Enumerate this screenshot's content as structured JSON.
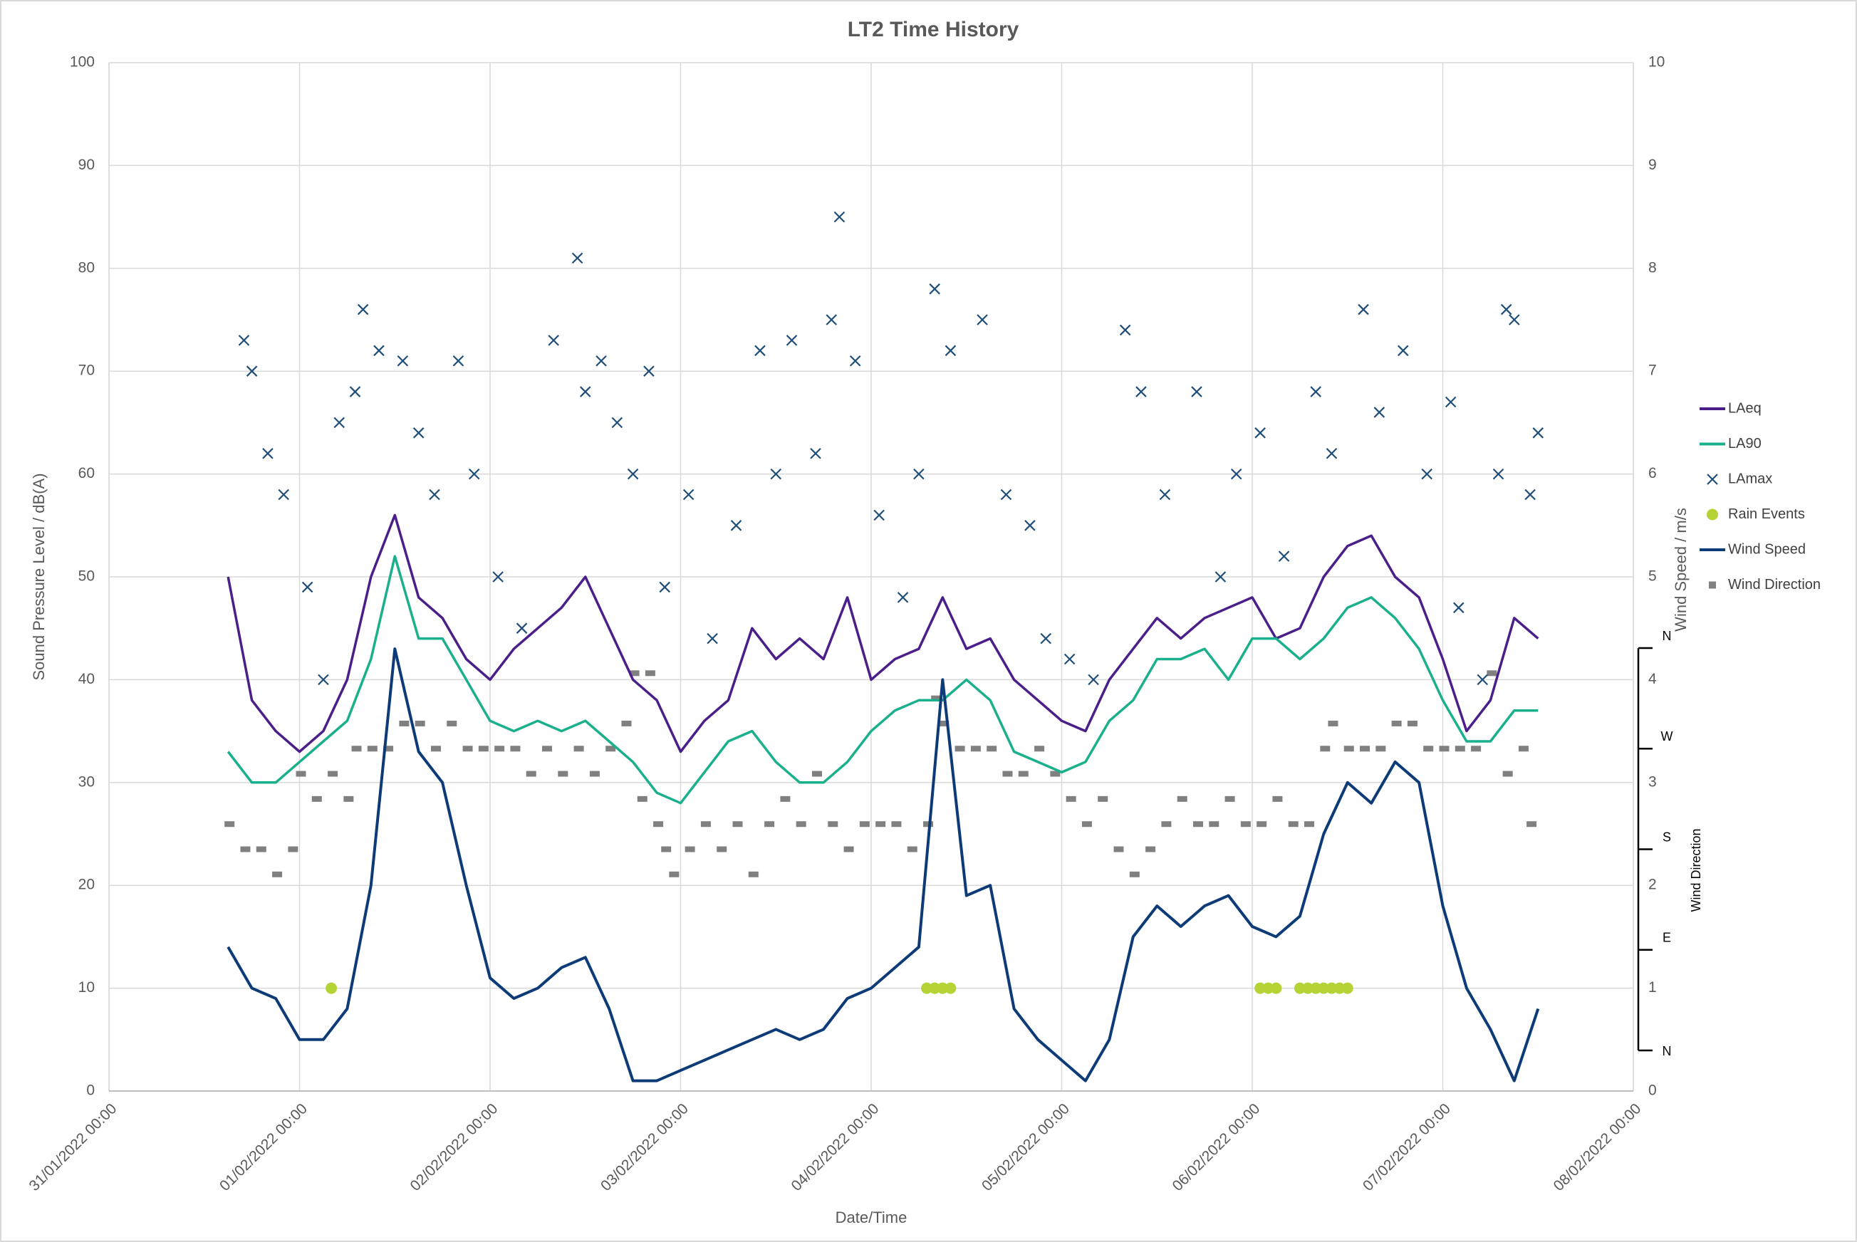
{
  "chart_data": {
    "type": "line",
    "title": "LT2 Time History",
    "x_label": "Date/Time",
    "y_label": "Sound Pressure Level / dB(A)",
    "y2_label": "Wind Speed / m/s",
    "dir_label": "Wind Direction",
    "xlim": [
      "31/01/2022 00:00",
      "08/02/2022 00:00"
    ],
    "xticks": [
      "31/01/2022 00:00",
      "01/02/2022 00:00",
      "02/02/2022 00:00",
      "03/02/2022 00:00",
      "04/02/2022 00:00",
      "05/02/2022 00:00",
      "06/02/2022 00:00",
      "07/02/2022 00:00",
      "08/02/2022 00:00"
    ],
    "ylim": [
      0,
      100
    ],
    "yticks": [
      0,
      10,
      20,
      30,
      40,
      50,
      60,
      70,
      80,
      90,
      100
    ],
    "y2lim": [
      0,
      10
    ],
    "y2ticks": [
      0,
      1,
      2,
      3,
      4,
      5,
      6,
      7,
      8,
      9,
      10
    ],
    "dirlim": [
      0,
      360
    ],
    "dirticks": [
      {
        "value": 0,
        "label": "N"
      },
      {
        "value": 90,
        "label": "E"
      },
      {
        "value": 180,
        "label": "S"
      },
      {
        "value": 270,
        "label": "W"
      },
      {
        "value": 360,
        "label": "N"
      }
    ],
    "grid": true,
    "x": [
      "31/01/2022 15:00",
      "31/01/2022 18:00",
      "31/01/2022 21:00",
      "01/02/2022 00:00",
      "01/02/2022 03:00",
      "01/02/2022 06:00",
      "01/02/2022 09:00",
      "01/02/2022 12:00",
      "01/02/2022 15:00",
      "01/02/2022 18:00",
      "01/02/2022 21:00",
      "02/02/2022 00:00",
      "02/02/2022 03:00",
      "02/02/2022 06:00",
      "02/02/2022 09:00",
      "02/02/2022 12:00",
      "02/02/2022 15:00",
      "02/02/2022 18:00",
      "02/02/2022 21:00",
      "03/02/2022 00:00",
      "03/02/2022 03:00",
      "03/02/2022 06:00",
      "03/02/2022 09:00",
      "03/02/2022 12:00",
      "03/02/2022 15:00",
      "03/02/2022 18:00",
      "03/02/2022 21:00",
      "04/02/2022 00:00",
      "04/02/2022 03:00",
      "04/02/2022 06:00",
      "04/02/2022 09:00",
      "04/02/2022 12:00",
      "04/02/2022 15:00",
      "04/02/2022 18:00",
      "04/02/2022 21:00",
      "05/02/2022 00:00",
      "05/02/2022 03:00",
      "05/02/2022 06:00",
      "05/02/2022 09:00",
      "05/02/2022 12:00",
      "05/02/2022 15:00",
      "05/02/2022 18:00",
      "05/02/2022 21:00",
      "06/02/2022 00:00",
      "06/02/2022 03:00",
      "06/02/2022 06:00",
      "06/02/2022 09:00",
      "06/02/2022 12:00",
      "06/02/2022 15:00",
      "06/02/2022 18:00",
      "06/02/2022 21:00",
      "07/02/2022 00:00",
      "07/02/2022 03:00",
      "07/02/2022 06:00",
      "07/02/2022 09:00",
      "07/02/2022 12:00"
    ],
    "series": [
      {
        "name": "LAeq",
        "color": "#4b1f8a",
        "kind": "line",
        "values": [
          50,
          38,
          35,
          33,
          35,
          40,
          50,
          56,
          48,
          46,
          42,
          40,
          43,
          45,
          47,
          50,
          45,
          40,
          38,
          33,
          36,
          38,
          45,
          42,
          44,
          42,
          48,
          40,
          42,
          43,
          48,
          43,
          44,
          40,
          38,
          36,
          35,
          40,
          43,
          46,
          44,
          46,
          47,
          48,
          44,
          45,
          50,
          53,
          54,
          50,
          48,
          42,
          35,
          38,
          46,
          44
        ]
      },
      {
        "name": "LA90",
        "color": "#1bb08c",
        "kind": "line",
        "values": [
          33,
          30,
          30,
          32,
          34,
          36,
          42,
          52,
          44,
          44,
          40,
          36,
          35,
          36,
          35,
          36,
          34,
          32,
          29,
          28,
          31,
          34,
          35,
          32,
          30,
          30,
          32,
          35,
          37,
          38,
          38,
          40,
          38,
          33,
          32,
          31,
          32,
          36,
          38,
          42,
          42,
          43,
          40,
          44,
          44,
          42,
          44,
          47,
          48,
          46,
          43,
          38,
          34,
          34,
          37,
          37
        ]
      },
      {
        "name": "LAmax",
        "color": "#1f4e79",
        "kind": "scatter",
        "marker": "x",
        "x": [
          "31/01/2022 17:00",
          "31/01/2022 18:00",
          "31/01/2022 20:00",
          "31/01/2022 22:00",
          "01/02/2022 01:00",
          "01/02/2022 03:00",
          "01/02/2022 05:00",
          "01/02/2022 07:00",
          "01/02/2022 08:00",
          "01/02/2022 10:00",
          "01/02/2022 13:00",
          "01/02/2022 15:00",
          "01/02/2022 17:00",
          "01/02/2022 20:00",
          "01/02/2022 22:00",
          "02/02/2022 01:00",
          "02/02/2022 04:00",
          "02/02/2022 08:00",
          "02/02/2022 11:00",
          "02/02/2022 12:00",
          "02/02/2022 14:00",
          "02/02/2022 16:00",
          "02/02/2022 18:00",
          "02/02/2022 20:00",
          "02/02/2022 22:00",
          "03/02/2022 01:00",
          "03/02/2022 04:00",
          "03/02/2022 07:00",
          "03/02/2022 10:00",
          "03/02/2022 12:00",
          "03/02/2022 14:00",
          "03/02/2022 17:00",
          "03/02/2022 19:00",
          "03/02/2022 20:00",
          "03/02/2022 22:00",
          "04/02/2022 01:00",
          "04/02/2022 04:00",
          "04/02/2022 06:00",
          "04/02/2022 08:00",
          "04/02/2022 10:00",
          "04/02/2022 14:00",
          "04/02/2022 17:00",
          "04/02/2022 20:00",
          "04/02/2022 22:00",
          "05/02/2022 01:00",
          "05/02/2022 04:00",
          "05/02/2022 08:00",
          "05/02/2022 10:00",
          "05/02/2022 13:00",
          "05/02/2022 17:00",
          "05/02/2022 20:00",
          "05/02/2022 22:00",
          "06/02/2022 01:00",
          "06/02/2022 04:00",
          "06/02/2022 08:00",
          "06/02/2022 10:00",
          "06/02/2022 14:00",
          "06/02/2022 16:00",
          "06/02/2022 19:00",
          "06/02/2022 22:00",
          "07/02/2022 01:00",
          "07/02/2022 02:00",
          "07/02/2022 05:00",
          "07/02/2022 07:00",
          "07/02/2022 08:00",
          "07/02/2022 09:00",
          "07/02/2022 11:00",
          "07/02/2022 12:00"
        ],
        "values": [
          73,
          70,
          62,
          58,
          49,
          40,
          65,
          68,
          76,
          72,
          71,
          64,
          58,
          71,
          60,
          50,
          45,
          73,
          81,
          68,
          71,
          65,
          60,
          70,
          49,
          58,
          44,
          55,
          72,
          60,
          73,
          62,
          75,
          85,
          71,
          56,
          48,
          60,
          78,
          72,
          75,
          58,
          55,
          44,
          42,
          40,
          74,
          68,
          58,
          68,
          50,
          60,
          64,
          52,
          68,
          62,
          76,
          66,
          72,
          60,
          67,
          47,
          40,
          60,
          76,
          75,
          58,
          64
        ]
      },
      {
        "name": "Rain Events",
        "color": "#b5d334",
        "kind": "scatter",
        "marker": "circle",
        "x": [
          "01/02/2022 04:00",
          "04/02/2022 07:00",
          "04/02/2022 08:00",
          "04/02/2022 09:00",
          "04/02/2022 10:00",
          "06/02/2022 01:00",
          "06/02/2022 02:00",
          "06/02/2022 03:00",
          "06/02/2022 06:00",
          "06/02/2022 07:00",
          "06/02/2022 08:00",
          "06/02/2022 09:00",
          "06/02/2022 10:00",
          "06/02/2022 11:00",
          "06/02/2022 12:00"
        ],
        "values": [
          10,
          10,
          10,
          10,
          10,
          10,
          10,
          10,
          10,
          10,
          10,
          10,
          10,
          10,
          10
        ]
      },
      {
        "name": "Wind Speed",
        "color": "#0d3b78",
        "kind": "line",
        "axis": "y2",
        "values": [
          1.4,
          1.0,
          0.9,
          0.5,
          0.5,
          0.8,
          2.0,
          4.3,
          3.3,
          3.0,
          2.0,
          1.1,
          0.9,
          1.0,
          1.2,
          1.3,
          0.8,
          0.1,
          0.1,
          0.2,
          0.3,
          0.4,
          0.5,
          0.6,
          0.5,
          0.6,
          0.9,
          1.0,
          1.2,
          1.4,
          4.0,
          1.9,
          2.0,
          0.8,
          0.5,
          0.3,
          0.1,
          0.5,
          1.5,
          1.8,
          1.6,
          1.8,
          1.9,
          1.6,
          1.5,
          1.7,
          2.5,
          3.0,
          2.8,
          3.2,
          3.0,
          1.8,
          1.0,
          0.6,
          0.1,
          0.8
        ]
      },
      {
        "name": "Wind Direction",
        "color": "#808080",
        "kind": "scatter",
        "marker": "square",
        "axis": "dir",
        "x": [
          "31/01/2022 15:00",
          "31/01/2022 17:00",
          "31/01/2022 19:00",
          "31/01/2022 21:00",
          "31/01/2022 23:00",
          "01/02/2022 00:00",
          "01/02/2022 02:00",
          "01/02/2022 04:00",
          "01/02/2022 06:00",
          "01/02/2022 07:00",
          "01/02/2022 09:00",
          "01/02/2022 11:00",
          "01/02/2022 13:00",
          "01/02/2022 15:00",
          "01/02/2022 17:00",
          "01/02/2022 19:00",
          "01/02/2022 21:00",
          "01/02/2022 23:00",
          "02/02/2022 01:00",
          "02/02/2022 03:00",
          "02/02/2022 05:00",
          "02/02/2022 07:00",
          "02/02/2022 09:00",
          "02/02/2022 11:00",
          "02/02/2022 13:00",
          "02/02/2022 15:00",
          "02/02/2022 17:00",
          "02/02/2022 18:00",
          "02/02/2022 19:00",
          "02/02/2022 20:00",
          "02/02/2022 21:00",
          "02/02/2022 22:00",
          "02/02/2022 23:00",
          "03/02/2022 01:00",
          "03/02/2022 03:00",
          "03/02/2022 05:00",
          "03/02/2022 07:00",
          "03/02/2022 09:00",
          "03/02/2022 11:00",
          "03/02/2022 13:00",
          "03/02/2022 15:00",
          "03/02/2022 17:00",
          "03/02/2022 19:00",
          "03/02/2022 21:00",
          "03/02/2022 23:00",
          "04/02/2022 01:00",
          "04/02/2022 03:00",
          "04/02/2022 05:00",
          "04/02/2022 07:00",
          "04/02/2022 08:00",
          "04/02/2022 09:00",
          "04/02/2022 11:00",
          "04/02/2022 13:00",
          "04/02/2022 15:00",
          "04/02/2022 17:00",
          "04/02/2022 19:00",
          "04/02/2022 21:00",
          "04/02/2022 23:00",
          "05/02/2022 01:00",
          "05/02/2022 03:00",
          "05/02/2022 05:00",
          "05/02/2022 07:00",
          "05/02/2022 09:00",
          "05/02/2022 11:00",
          "05/02/2022 13:00",
          "05/02/2022 15:00",
          "05/02/2022 17:00",
          "05/02/2022 19:00",
          "05/02/2022 21:00",
          "05/02/2022 23:00",
          "06/02/2022 01:00",
          "06/02/2022 03:00",
          "06/02/2022 05:00",
          "06/02/2022 07:00",
          "06/02/2022 09:00",
          "06/02/2022 10:00",
          "06/02/2022 12:00",
          "06/02/2022 14:00",
          "06/02/2022 16:00",
          "06/02/2022 18:00",
          "06/02/2022 20:00",
          "06/02/2022 22:00",
          "07/02/2022 00:00",
          "07/02/2022 02:00",
          "07/02/2022 04:00",
          "07/02/2022 06:00",
          "07/02/2022 08:00",
          "07/02/2022 10:00",
          "07/02/2022 11:00"
        ],
        "values": [
          202.5,
          180,
          180,
          157.5,
          180,
          247.5,
          225,
          247.5,
          225,
          270,
          270,
          270,
          292.5,
          292.5,
          270,
          292.5,
          270,
          270,
          270,
          270,
          247.5,
          270,
          247.5,
          270,
          247.5,
          270,
          292.5,
          337.5,
          225,
          337.5,
          202.5,
          180,
          157.5,
          180,
          202.5,
          180,
          202.5,
          157.5,
          202.5,
          225,
          202.5,
          247.5,
          202.5,
          180,
          202.5,
          202.5,
          202.5,
          180,
          202.5,
          315,
          292.5,
          270,
          270,
          270,
          247.5,
          247.5,
          270,
          247.5,
          225,
          202.5,
          225,
          180,
          157.5,
          180,
          202.5,
          225,
          202.5,
          202.5,
          225,
          202.5,
          202.5,
          225,
          202.5,
          202.5,
          270,
          292.5,
          270,
          270,
          270,
          292.5,
          292.5,
          270,
          270,
          270,
          270,
          337.5,
          247.5,
          270,
          202.5
        ]
      }
    ]
  }
}
